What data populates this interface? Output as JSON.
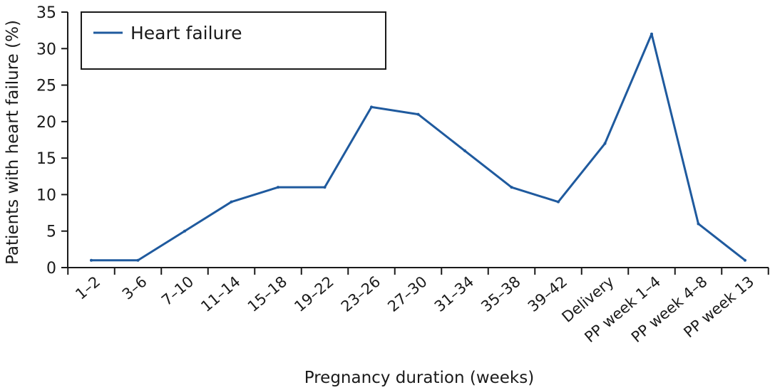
{
  "chart_data": {
    "type": "line",
    "xlabel": "Pregnancy duration (weeks)",
    "ylabel": "Patients with heart failure (%)",
    "ylim": [
      0,
      35
    ],
    "yticks": [
      0,
      5,
      10,
      15,
      20,
      25,
      30,
      35
    ],
    "grid": false,
    "legend_position": "top-left",
    "categories": [
      "1–2",
      "3–6",
      "7–10",
      "11–14",
      "15–18",
      "19–22",
      "23–26",
      "27–30",
      "31–34",
      "35–38",
      "39–42",
      "Delivery",
      "PP week 1–4",
      "PP week 4–8",
      "PP week 13"
    ],
    "series": [
      {
        "name": "Heart failure",
        "color": "#1f5a9e",
        "values": [
          1,
          1,
          5,
          9,
          11,
          11,
          22,
          21,
          16,
          11,
          9,
          17,
          32,
          6,
          1
        ]
      }
    ]
  }
}
